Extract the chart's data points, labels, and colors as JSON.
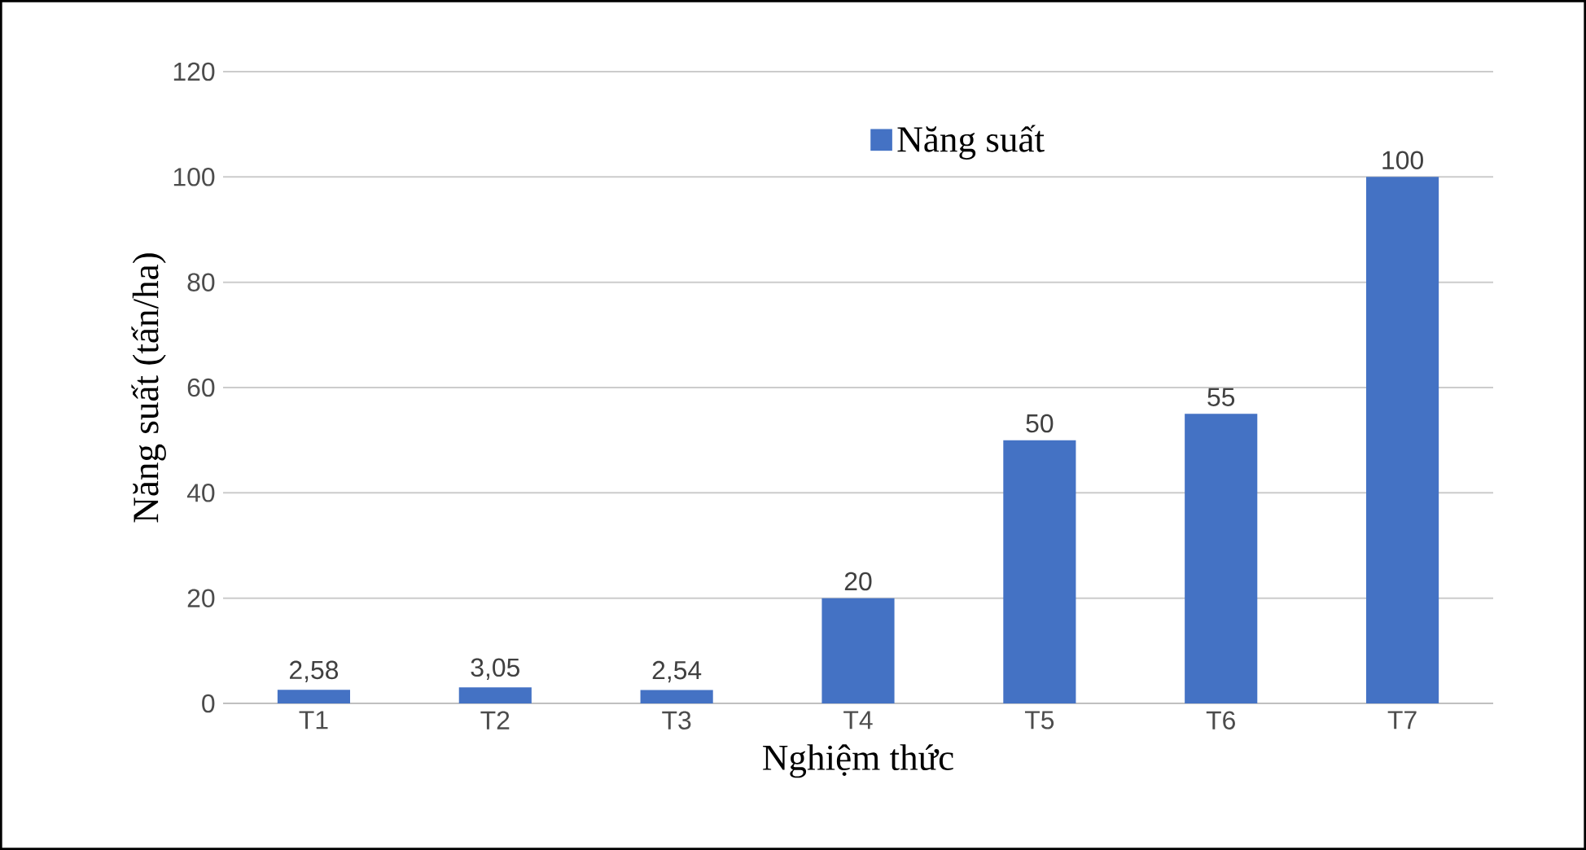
{
  "chart_data": {
    "type": "bar",
    "xlabel": "Nghiệm thức",
    "ylabel": "Năng suất (tấn/ha)",
    "categories": [
      "T1",
      "T2",
      "T3",
      "T4",
      "T5",
      "T6",
      "T7"
    ],
    "series": [
      {
        "name": "Năng suất",
        "color": "#4472c4",
        "values": [
          2.58,
          3.05,
          2.54,
          20,
          50,
          55,
          100
        ],
        "value_labels": [
          "2,58",
          "3,05",
          "2,54",
          "20",
          "50",
          "55",
          "100"
        ]
      }
    ],
    "ylim": [
      0,
      120
    ],
    "yticks": [
      0,
      20,
      40,
      60,
      80,
      100,
      120
    ],
    "grid": "y",
    "legend": "top"
  }
}
